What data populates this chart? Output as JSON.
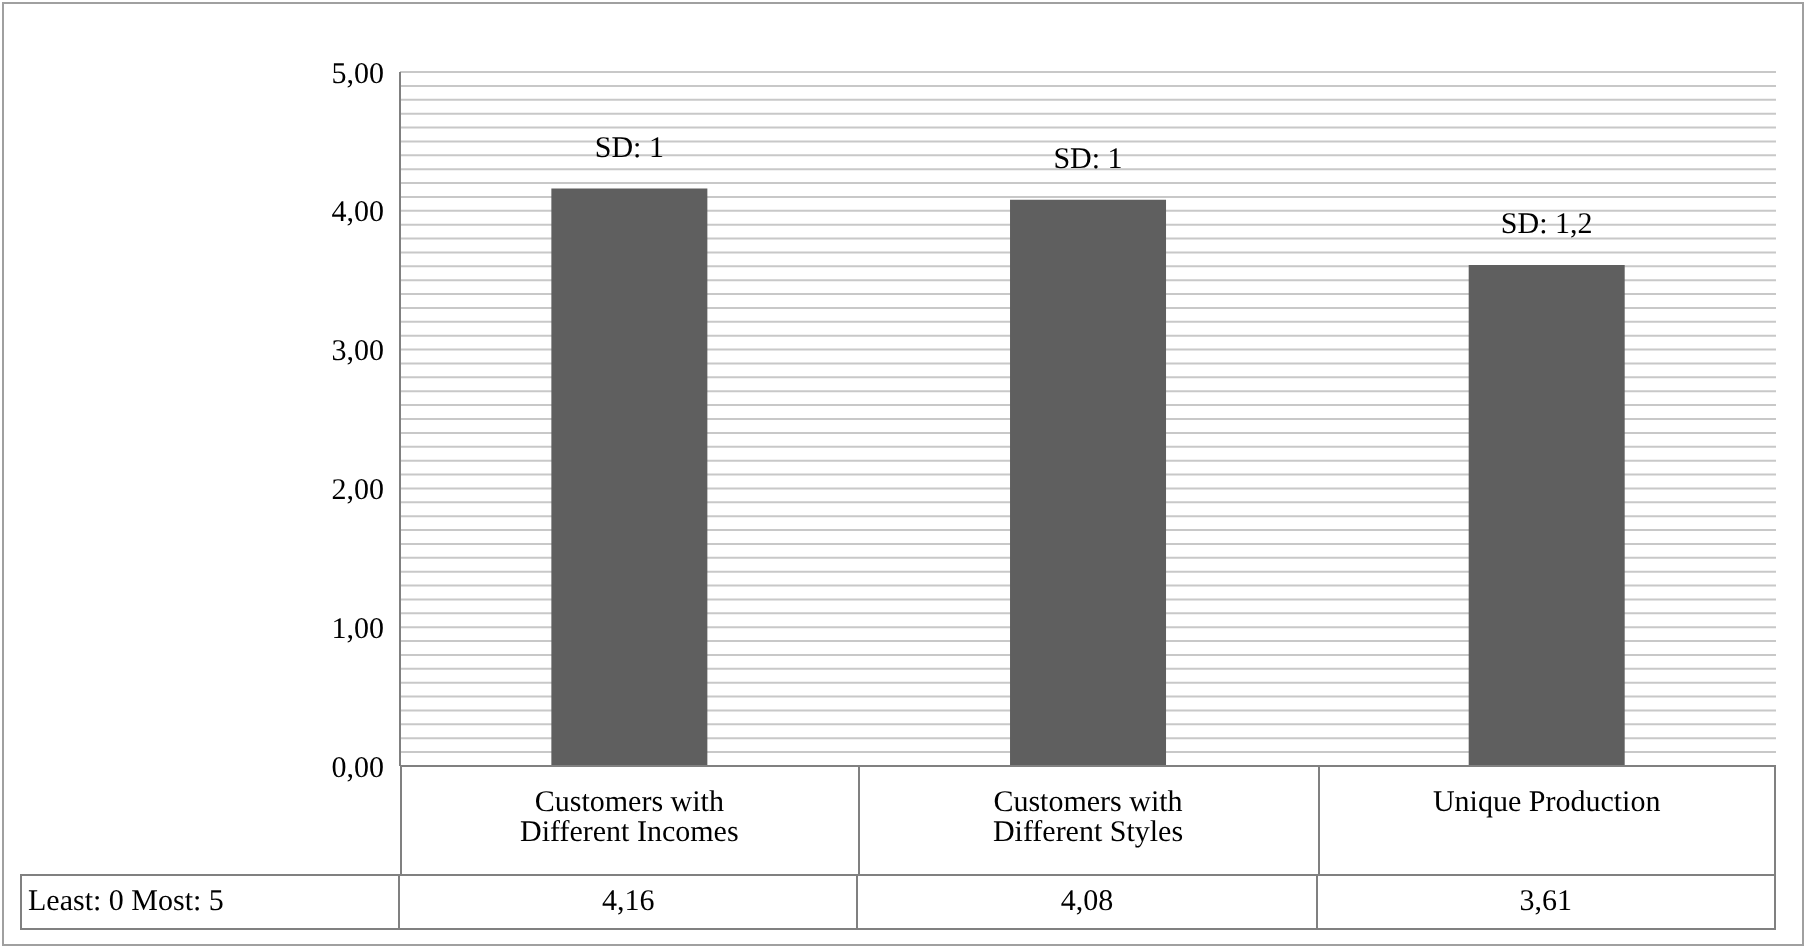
{
  "chart_data": {
    "type": "bar",
    "categories": [
      "Customers with Different Incomes",
      "Customers with Different Styles",
      "Unique Production"
    ],
    "values": [
      4.16,
      4.08,
      3.61
    ],
    "color": "#5f5f5f",
    "value_labels": [
      "4,16",
      "4,08",
      "3,61"
    ],
    "ylim": [
      0,
      5
    ],
    "yticks": [
      {
        "value": 0,
        "label": "0,00"
      },
      {
        "value": 1,
        "label": "1,00"
      },
      {
        "value": 2,
        "label": "2,00"
      },
      {
        "value": 3,
        "label": "3,00"
      },
      {
        "value": 4,
        "label": "4,00"
      },
      {
        "value": 5,
        "label": "5,00"
      }
    ],
    "grid": "y",
    "annotations": [
      "Least: 0 Most: 5",
      {
        "text": "SD: 1",
        "x": "Customers with Different Incomes",
        "y": 4.16
      },
      {
        "text": "SD: 1",
        "x": "Customers with Different Styles",
        "y": 4.08
      },
      {
        "text": "SD: 1,2",
        "x": "Unique Production",
        "y": 3.61
      }
    ]
  }
}
